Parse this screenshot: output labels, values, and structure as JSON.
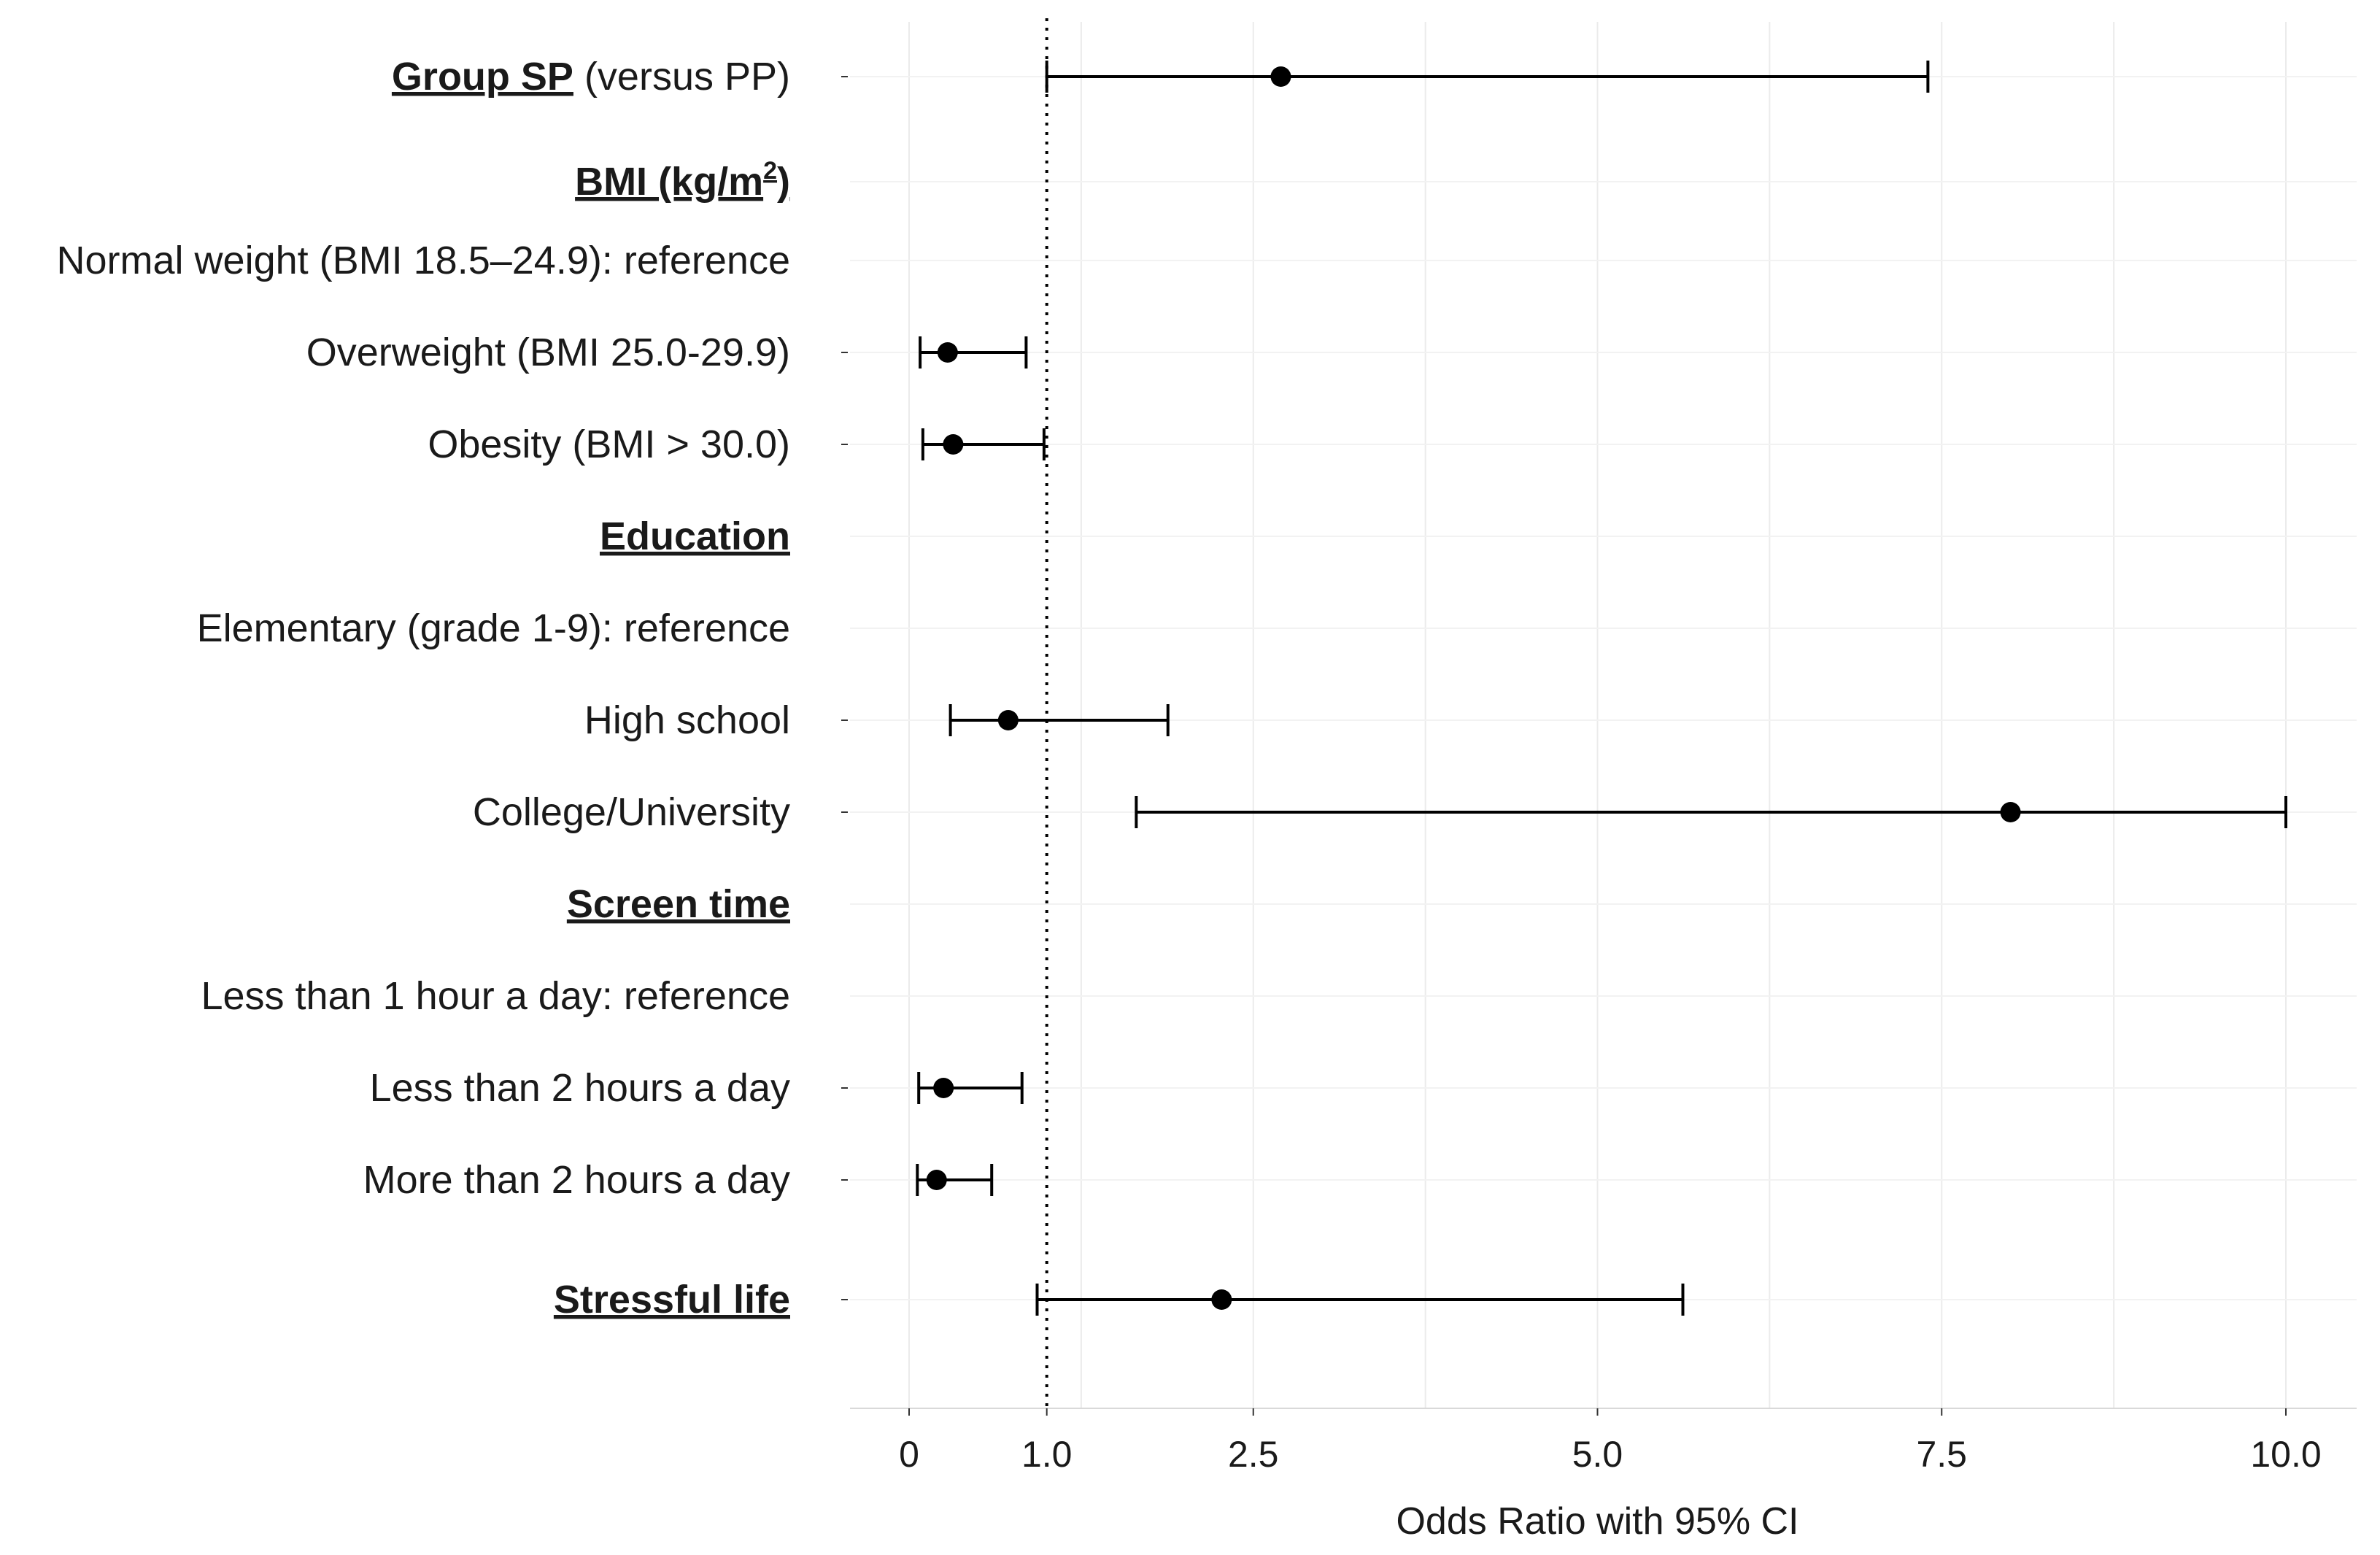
{
  "chart_data": {
    "type": "forest",
    "xlabel": "Odds Ratio with 95% CI",
    "xlim": [
      -0.1,
      10.1
    ],
    "xticks": [
      {
        "value": 0,
        "label": "0"
      },
      {
        "value": 1,
        "label": "1.0"
      },
      {
        "value": 2.5,
        "label": "2.5"
      },
      {
        "value": 5,
        "label": "5.0"
      },
      {
        "value": 7.5,
        "label": "7.5"
      },
      {
        "value": 10,
        "label": "10.0"
      }
    ],
    "reference_line": 1,
    "rows": [
      {
        "label": "Group SP",
        "suffix": " (versus PP)",
        "header": true,
        "or": 2.7,
        "lo": 1.0,
        "hi": 7.4
      },
      {
        "label": "BMI (kg/m",
        "sup": "2",
        "after": ")",
        "header": true
      },
      {
        "label": "Normal weight (BMI 18.5–24.9): reference"
      },
      {
        "label": "Overweight (BMI 25.0-29.9)",
        "or": 0.28,
        "lo": 0.08,
        "hi": 0.85
      },
      {
        "label": "Obesity (BMI > 30.0)",
        "or": 0.32,
        "lo": 0.1,
        "hi": 0.98
      },
      {
        "label": "Education",
        "header": true
      },
      {
        "label": "Elementary (grade 1-9): reference"
      },
      {
        "label": "High school",
        "or": 0.72,
        "lo": 0.3,
        "hi": 1.88
      },
      {
        "label": "College/University",
        "or": 8.0,
        "lo": 1.65,
        "hi": 10.0
      },
      {
        "label": "Screen time",
        "header": true
      },
      {
        "label": "Less than 1 hour a day: reference"
      },
      {
        "label": "Less than 2 hours a day",
        "or": 0.25,
        "lo": 0.07,
        "hi": 0.82
      },
      {
        "label": "More than 2 hours a day",
        "or": 0.2,
        "lo": 0.06,
        "hi": 0.6
      },
      {
        "label": "Stressful life",
        "header": true,
        "or": 2.27,
        "lo": 0.93,
        "hi": 5.62
      }
    ]
  }
}
